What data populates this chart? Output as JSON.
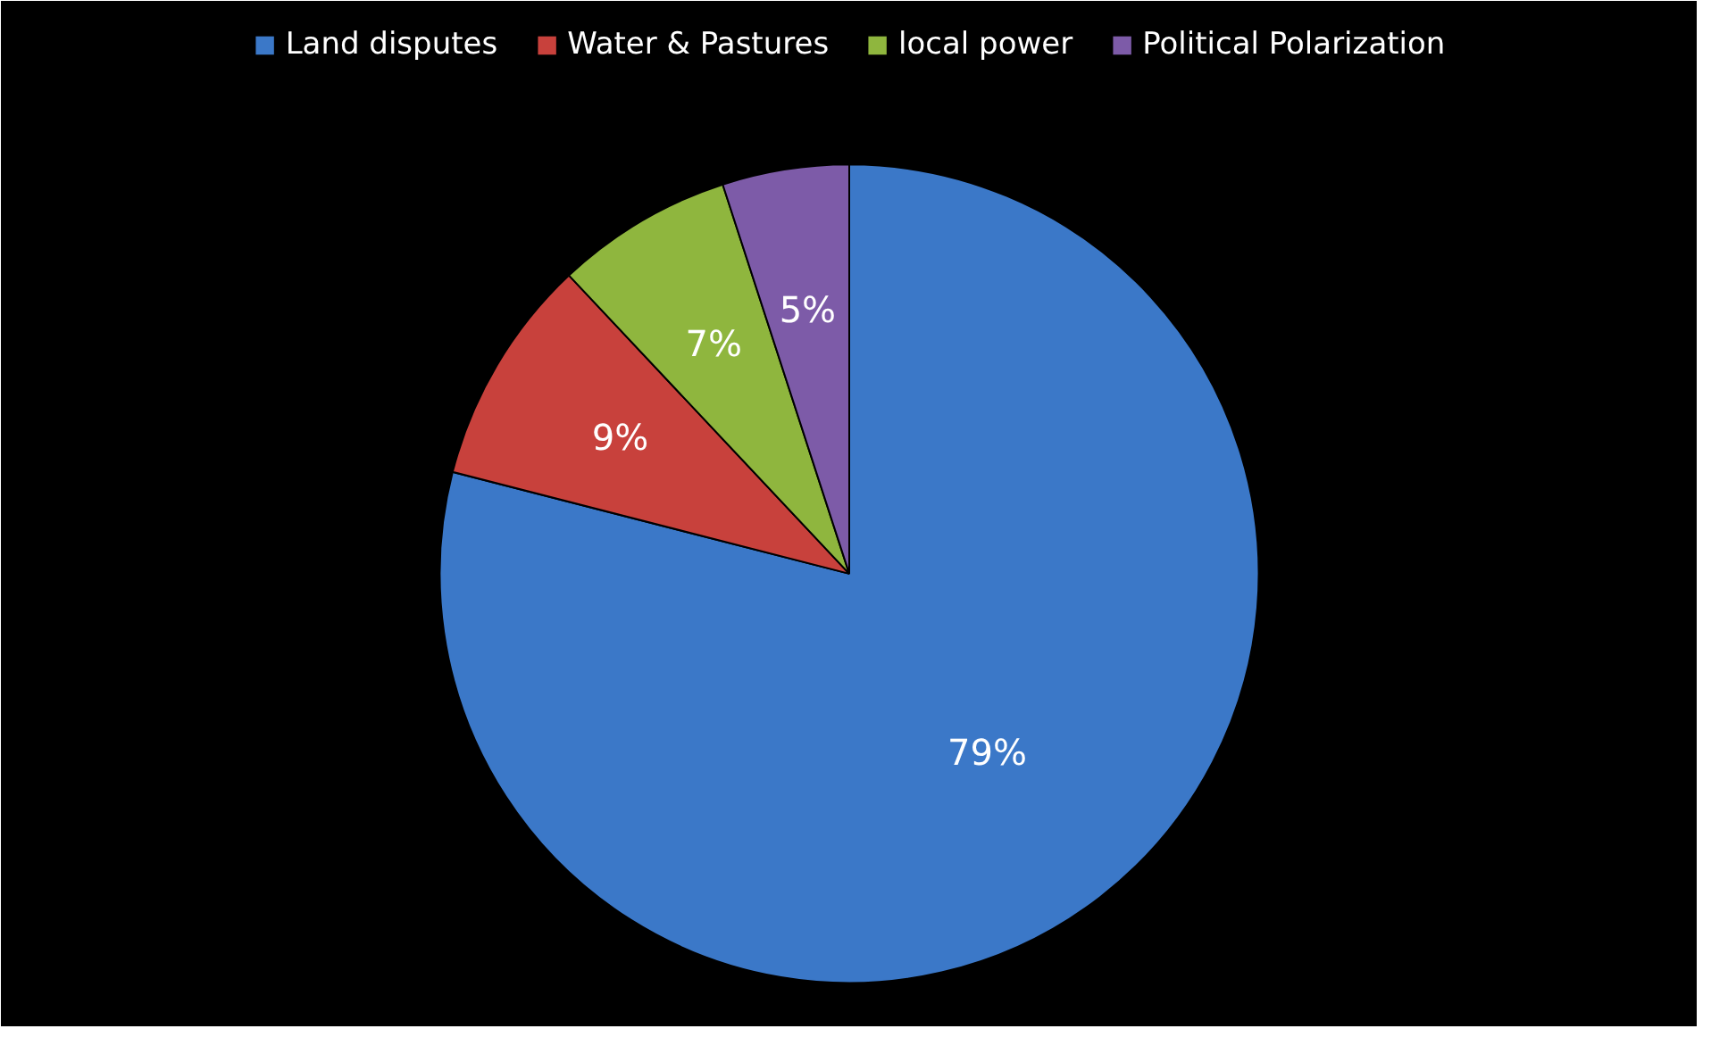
{
  "chart_data": {
    "type": "pie",
    "categories": [
      "Land disputes",
      "Water & Pastures",
      "local power",
      "Political Polarization"
    ],
    "values": [
      79,
      9,
      7,
      5
    ],
    "colors": [
      "#3b78c8",
      "#c8413c",
      "#8fb63e",
      "#7d5ba8"
    ],
    "value_labels": [
      "79%",
      "9%",
      "7%",
      "5%"
    ],
    "legend": "top"
  }
}
